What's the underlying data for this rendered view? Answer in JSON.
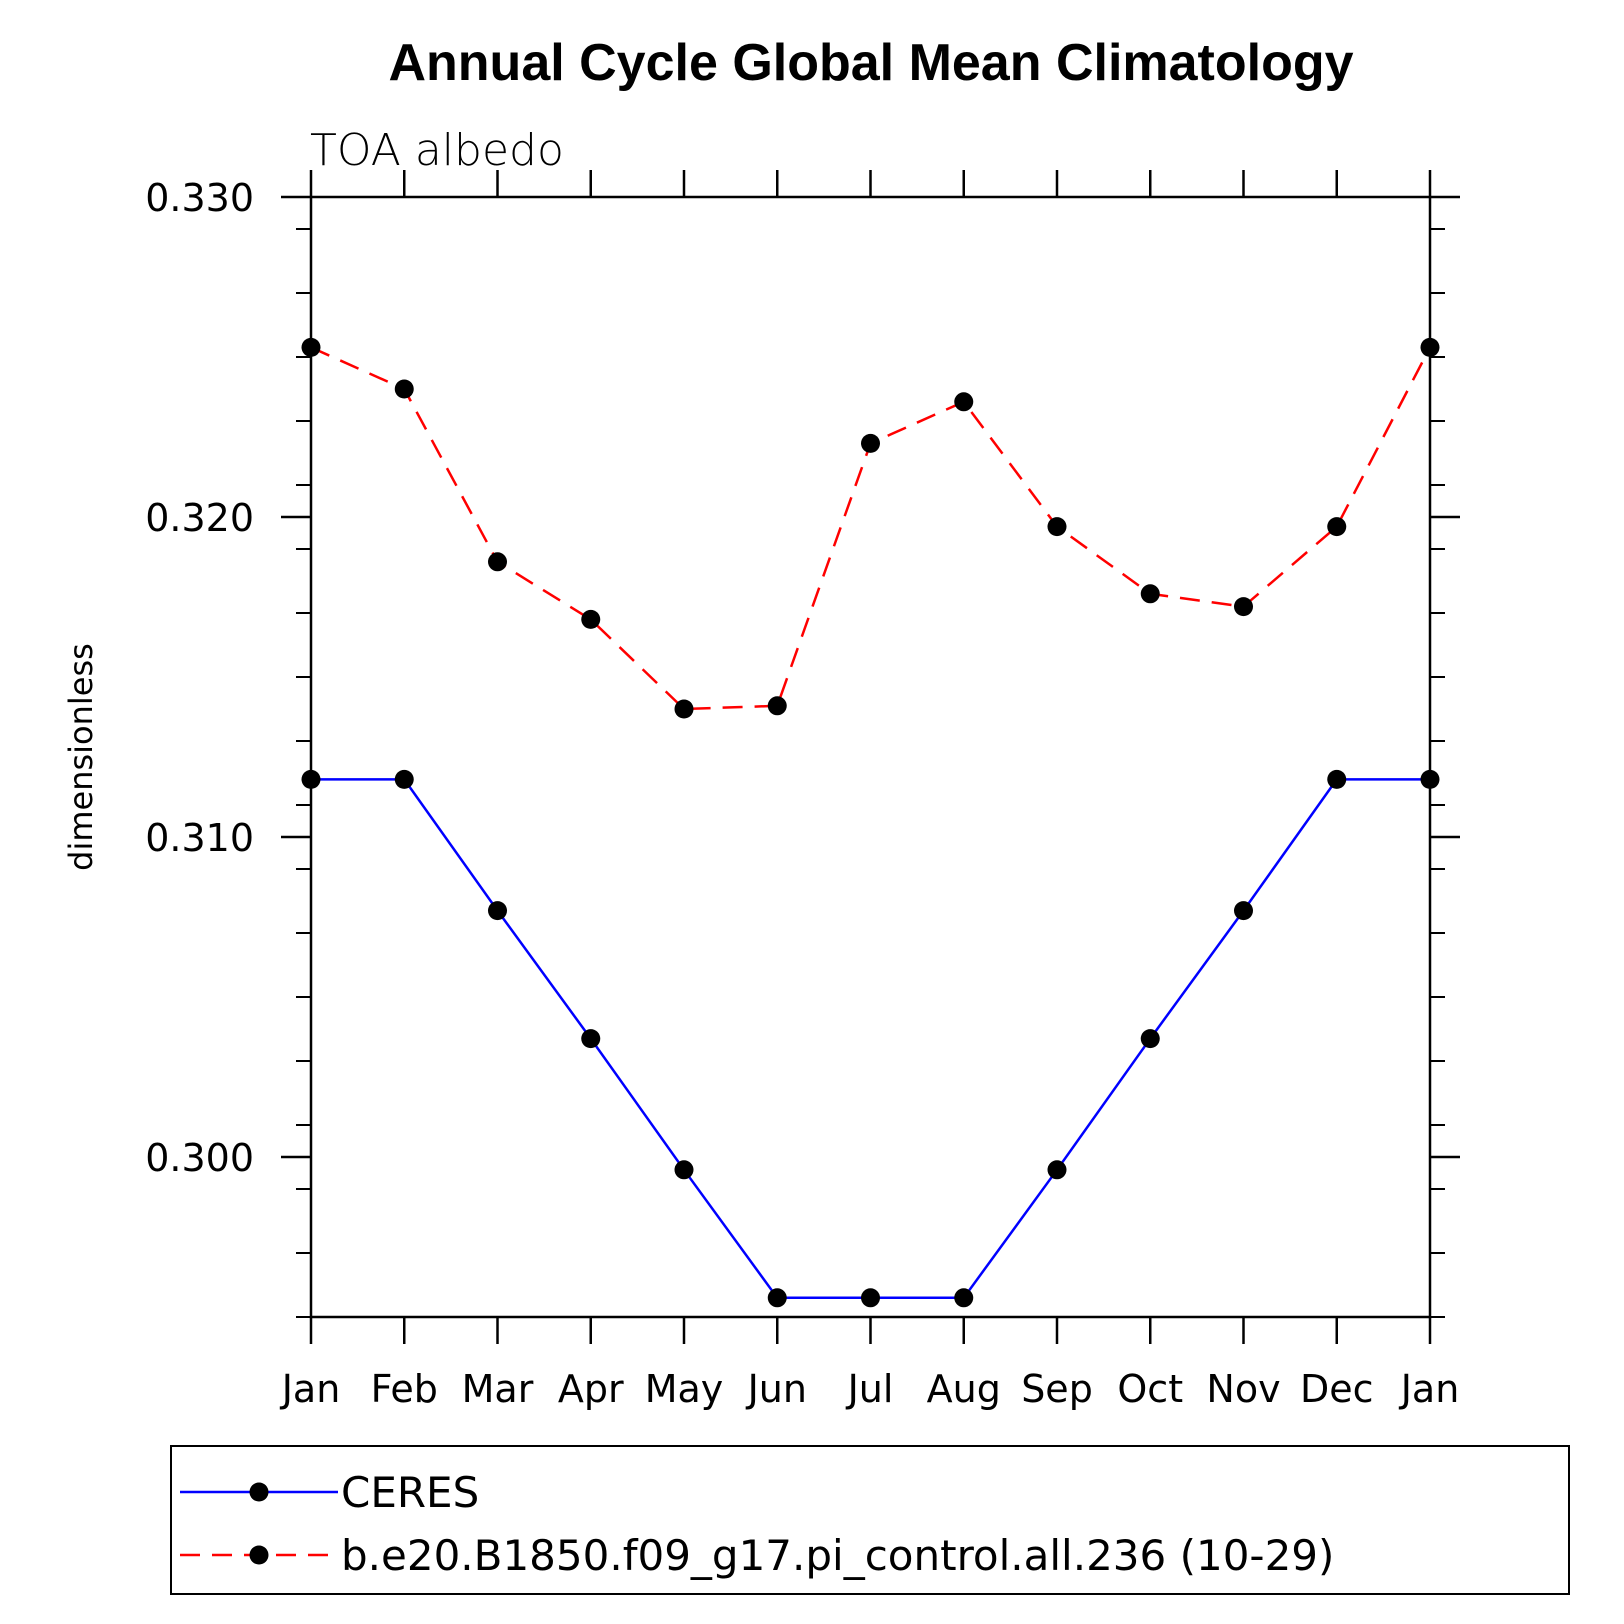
{
  "chart_data": {
    "type": "line",
    "title": "Annual Cycle Global Mean Climatology",
    "subtitle": "TOA albedo",
    "xlabel": "",
    "ylabel": "dimensionless",
    "categories": [
      "Jan",
      "Feb",
      "Mar",
      "Apr",
      "May",
      "Jun",
      "Jul",
      "Aug",
      "Sep",
      "Oct",
      "Nov",
      "Dec",
      "Jan"
    ],
    "ylim": [
      0.295,
      0.33
    ],
    "y_ticks": [
      "0.300",
      "0.310",
      "0.320",
      "0.330"
    ],
    "y_tick_values": [
      0.3,
      0.31,
      0.32,
      0.33
    ],
    "grid": false,
    "legend_position": "bottom",
    "series": [
      {
        "name": "CERES",
        "color": "#0000ff",
        "line_style": "solid",
        "marker": "filled-circle",
        "values": [
          0.3118,
          0.3118,
          0.3077,
          0.3037,
          0.2996,
          0.2956,
          0.2956,
          0.2956,
          0.2996,
          0.3037,
          0.3077,
          0.3118,
          0.3118
        ]
      },
      {
        "name": "b.e20.B1850.f09_g17.pi_control.all.236 (10-29)",
        "color": "#ff0000",
        "line_style": "dashed",
        "marker": "filled-circle",
        "values": [
          0.3253,
          0.324,
          0.3186,
          0.3168,
          0.314,
          0.3141,
          0.3223,
          0.3236,
          0.3197,
          0.3176,
          0.3172,
          0.3197,
          0.3253
        ]
      }
    ]
  }
}
